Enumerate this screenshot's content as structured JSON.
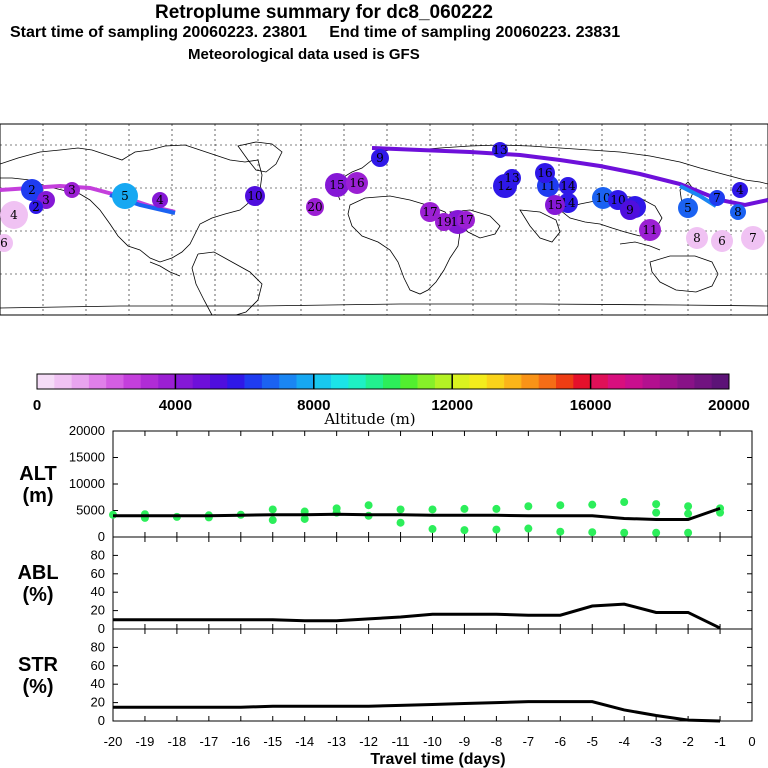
{
  "header": {
    "title": "Retroplume summary for dc8_060222",
    "start_label": "Start time of sampling 20060223. 23801",
    "end_label": "End time of sampling 20060223. 23831",
    "met_label": "Meteorological data used is GFS"
  },
  "colorbar": {
    "label": "Altitude (m)",
    "ticks": [
      "0",
      "4000",
      "8000",
      "12000",
      "16000",
      "20000"
    ],
    "colors": [
      "#f5dcf7",
      "#f0c2f3",
      "#e8a4ef",
      "#e07fea",
      "#d45ee3",
      "#c43fdc",
      "#b02cd6",
      "#9b1fd3",
      "#8518d6",
      "#6e10da",
      "#4f0ede",
      "#2f18e8",
      "#1f3cf0",
      "#1b62f2",
      "#1a86f3",
      "#16a8f2",
      "#18c8ef",
      "#1be4e8",
      "#1ef0c4",
      "#22f08f",
      "#2cee5a",
      "#52ef2f",
      "#86f029",
      "#b4f224",
      "#daf21f",
      "#f4ec1c",
      "#fad31a",
      "#fbb519",
      "#f99317",
      "#f56d16",
      "#ee3d14",
      "#e5102b",
      "#df1058",
      "#d80f7e",
      "#c90f8e",
      "#b3108f",
      "#9d118c",
      "#881287",
      "#711380",
      "#5c1377"
    ]
  },
  "map": {
    "labels": [
      "4",
      "6",
      "2",
      "3",
      "5",
      "4",
      "20",
      "10",
      "9",
      "15",
      "16",
      "14",
      "17",
      "18",
      "12",
      "11",
      "13",
      "16",
      "15",
      "14",
      "10",
      "9",
      "8",
      "7",
      "6",
      "5",
      "11",
      "10",
      "9",
      "8",
      "7",
      "3",
      "2",
      "4",
      "19",
      "17",
      "13"
    ]
  },
  "chart_data": [
    {
      "type": "line",
      "name": "ALT",
      "ylabel": "ALT (m)",
      "ylim": [
        0,
        20000
      ],
      "yticks": [
        "20000",
        "15000",
        "10000",
        "5000",
        "0"
      ],
      "x": [
        -20,
        -19,
        -18,
        -17,
        -16,
        -15,
        -14,
        -13,
        -12,
        -11,
        -10,
        -9,
        -8,
        -7,
        -6,
        -5,
        -4,
        -3,
        -2,
        -1
      ],
      "values": [
        4000,
        4000,
        4000,
        4000,
        4100,
        4200,
        4200,
        4300,
        4200,
        4200,
        4100,
        4100,
        4100,
        4000,
        4000,
        4000,
        3500,
        3300,
        3300,
        5400
      ],
      "points": [
        [
          -20,
          4200
        ],
        [
          -19,
          3600
        ],
        [
          -19,
          4300
        ],
        [
          -18,
          3800
        ],
        [
          -17,
          3700
        ],
        [
          -17,
          4100
        ],
        [
          -16,
          4200
        ],
        [
          -15,
          3200
        ],
        [
          -15,
          5200
        ],
        [
          -14,
          4800
        ],
        [
          -14,
          3400
        ],
        [
          -13,
          4600
        ],
        [
          -13,
          5400
        ],
        [
          -12,
          4000
        ],
        [
          -12,
          6000
        ],
        [
          -11,
          5200
        ],
        [
          -11,
          2700
        ],
        [
          -10,
          5200
        ],
        [
          -10,
          1500
        ],
        [
          -9,
          5300
        ],
        [
          -9,
          1300
        ],
        [
          -8,
          5300
        ],
        [
          -8,
          1400
        ],
        [
          -7,
          5800
        ],
        [
          -7,
          1600
        ],
        [
          -6,
          6000
        ],
        [
          -6,
          1000
        ],
        [
          -5,
          6100
        ],
        [
          -5,
          900
        ],
        [
          -4,
          6600
        ],
        [
          -4,
          800
        ],
        [
          -3,
          6200
        ],
        [
          -3,
          4600
        ],
        [
          -3,
          800
        ],
        [
          -2,
          5800
        ],
        [
          -2,
          4400
        ],
        [
          -2,
          800
        ],
        [
          -1,
          5400
        ],
        [
          -1,
          4600
        ]
      ],
      "point_color": "#2cee5a"
    },
    {
      "type": "line",
      "name": "ABL",
      "ylabel": "ABL (%)",
      "ylim": [
        0,
        100
      ],
      "yticks": [
        "80",
        "60",
        "40",
        "20",
        "0"
      ],
      "x": [
        -20,
        -19,
        -18,
        -17,
        -16,
        -15,
        -14,
        -13,
        -12,
        -11,
        -10,
        -9,
        -8,
        -7,
        -6,
        -5,
        -4,
        -3,
        -2,
        -1
      ],
      "values": [
        10,
        10,
        10,
        10,
        10,
        10,
        9,
        9,
        11,
        13,
        16,
        16,
        16,
        15,
        15,
        25,
        27,
        18,
        18,
        1
      ]
    },
    {
      "type": "line",
      "name": "STR",
      "ylabel": "STR (%)",
      "ylim": [
        0,
        100
      ],
      "yticks": [
        "80",
        "60",
        "40",
        "20",
        "0"
      ],
      "x": [
        -20,
        -19,
        -18,
        -17,
        -16,
        -15,
        -14,
        -13,
        -12,
        -11,
        -10,
        -9,
        -8,
        -7,
        -6,
        -5,
        -4,
        -3,
        -2,
        -1
      ],
      "values": [
        15,
        15,
        15,
        15,
        15,
        16,
        16,
        16,
        16,
        17,
        18,
        19,
        20,
        21,
        21,
        21,
        12,
        6,
        1,
        0
      ]
    }
  ],
  "xaxis": {
    "ticks": [
      "-20",
      "-19",
      "-18",
      "-17",
      "-16",
      "-15",
      "-14",
      "-13",
      "-12",
      "-11",
      "-10",
      "-9",
      "-8",
      "-7",
      "-6",
      "-5",
      "-4",
      "-3",
      "-2",
      "-1",
      "0"
    ],
    "label": "Travel time (days)"
  }
}
